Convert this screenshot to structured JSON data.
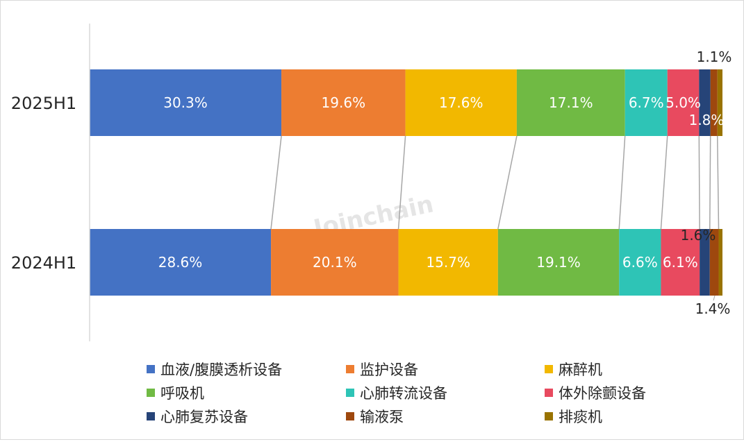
{
  "watermark": "Joinchain",
  "chart_data": {
    "type": "bar",
    "stacked": true,
    "normalized": true,
    "orientation": "horizontal",
    "unit": "%",
    "categories": [
      "2025H1",
      "2024H1"
    ],
    "series": [
      {
        "name": "血液/腹膜透析设备",
        "color": "#4472C4",
        "values": [
          30.3,
          28.6
        ],
        "labels": [
          "30.3%",
          "28.6%"
        ]
      },
      {
        "name": "监护设备",
        "color": "#ED7D31",
        "values": [
          19.6,
          20.1
        ],
        "labels": [
          "19.6%",
          "20.1%"
        ]
      },
      {
        "name": "麻醉机",
        "color": "#F2B800",
        "values": [
          17.6,
          15.7
        ],
        "labels": [
          "17.6%",
          "15.7%"
        ]
      },
      {
        "name": "呼吸机",
        "color": "#70BA44",
        "values": [
          17.1,
          19.1
        ],
        "labels": [
          "17.1%",
          "19.1%"
        ]
      },
      {
        "name": "心肺转流设备",
        "color": "#2EC4B6",
        "values": [
          6.7,
          6.6
        ],
        "labels": [
          "6.7%",
          "6.6%"
        ]
      },
      {
        "name": "体外除颤设备",
        "color": "#E84A5F",
        "values": [
          5.0,
          6.1
        ],
        "labels": [
          "5.0%",
          "6.1%"
        ]
      },
      {
        "name": "心肺复苏设备",
        "color": "#264478",
        "values": [
          1.8,
          1.6
        ],
        "labels": [
          "1.8%",
          "1.6%"
        ]
      },
      {
        "name": "输液泵",
        "color": "#9E480E",
        "values": [
          1.1,
          1.4
        ],
        "labels": [
          "1.1%",
          "1.4%"
        ]
      },
      {
        "name": "排痰机",
        "color": "#997300",
        "values": [
          0.8,
          0.6
        ],
        "labels": [
          "",
          ""
        ]
      }
    ],
    "legend": "bottom",
    "grid": false,
    "connector_lines": true
  }
}
